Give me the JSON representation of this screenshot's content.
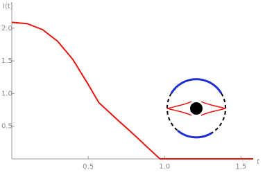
{
  "chart_data": {
    "type": "line",
    "x_label": "t",
    "y_label": "I(t)",
    "x": [
      0,
      0.1,
      0.2,
      0.3,
      0.4,
      0.5,
      0.57,
      0.7,
      0.8,
      0.9,
      0.97,
      1.2,
      1.58
    ],
    "series": [
      {
        "color": "#e8140f",
        "values": [
          2.09,
          2.07,
          1.98,
          1.8,
          1.52,
          1.14,
          0.86,
          0.58,
          0.37,
          0.15,
          0,
          0,
          0
        ]
      }
    ],
    "xlim": [
      0,
      1.58
    ],
    "ylim": [
      0,
      2.4
    ],
    "xticks": [
      0.5,
      {
        "value": 1,
        "label": "1.0"
      },
      1.5
    ],
    "yticks": [
      0.5,
      {
        "value": 1,
        "label": "1.0"
      },
      1.5,
      {
        "value": 2,
        "label": "2.0"
      }
    ]
  }
}
